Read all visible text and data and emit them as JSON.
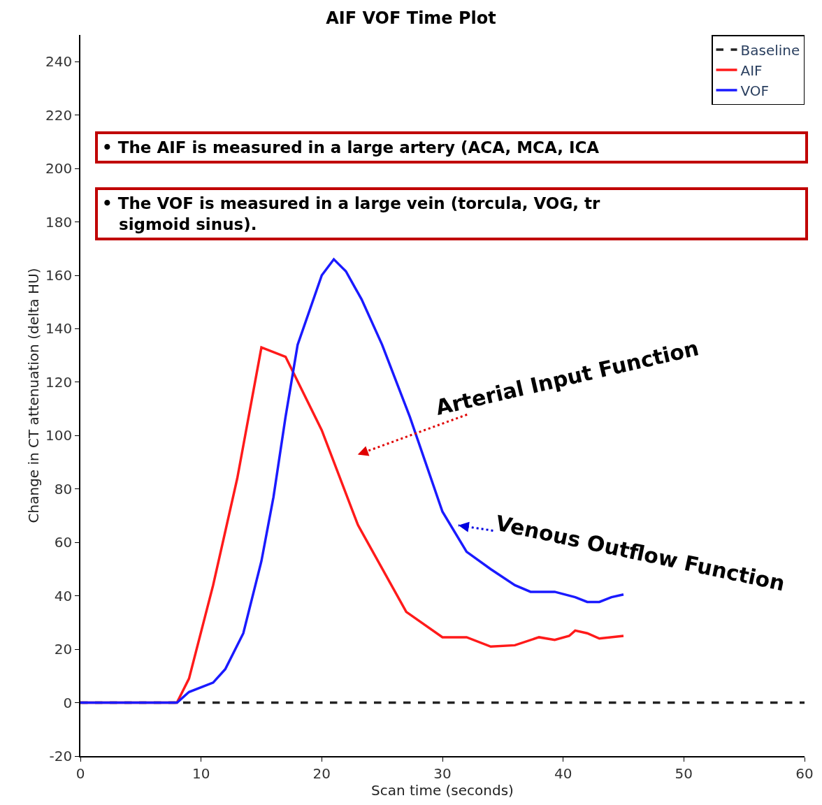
{
  "chart_data": {
    "type": "line",
    "title": "AIF VOF Time Plot",
    "xlabel": "Scan time (seconds)",
    "ylabel": "Change in CT attenuation (delta HU)",
    "xlim": [
      0,
      60
    ],
    "ylim": [
      -20,
      250
    ],
    "xticks": [
      0,
      10,
      20,
      30,
      40,
      50,
      60
    ],
    "yticks": [
      -20,
      0,
      20,
      40,
      60,
      80,
      100,
      120,
      140,
      160,
      180,
      200,
      220,
      240
    ],
    "grid": false,
    "legend": "top right",
    "marker": "none",
    "series": [
      {
        "name": "Baseline",
        "color": "#222222",
        "line_style": "dashed",
        "x": [
          0,
          60
        ],
        "values": [
          0,
          0
        ]
      },
      {
        "name": "AIF",
        "color": "#ff1a1a",
        "line_style": "solid",
        "x": [
          0,
          8,
          9,
          11,
          13,
          15,
          17,
          20,
          23,
          27,
          30,
          32,
          34,
          36,
          38,
          39.3,
          40.5,
          41,
          42,
          43,
          45
        ],
        "values": [
          0,
          0,
          9,
          44,
          84,
          133,
          129.5,
          102,
          66.5,
          34,
          24.5,
          24.5,
          21,
          21.5,
          24.5,
          23.5,
          25,
          27,
          26,
          24,
          25
        ]
      },
      {
        "name": "VOF",
        "color": "#1a1aff",
        "line_style": "solid",
        "x": [
          0,
          8,
          9,
          11,
          12,
          13.5,
          15,
          16,
          17,
          18,
          20,
          21,
          22,
          23.3,
          25,
          27.3,
          30,
          32,
          34,
          36,
          37.3,
          39.3,
          41,
          42,
          43,
          44,
          45
        ],
        "values": [
          0,
          0,
          4,
          7.5,
          12.5,
          26,
          53,
          77,
          107,
          134,
          160,
          166,
          161.5,
          151,
          134,
          107,
          71.5,
          56.5,
          50,
          44,
          41.5,
          41.5,
          39.5,
          37.7,
          37.7,
          39.5,
          40.5
        ]
      }
    ],
    "annotations": [
      "Arterial Input Function",
      "Venous Outflow Function",
      "• The AIF is measured in a large artery (ACA, MCA, ICA",
      "• The VOF is measured in a large vein (torcula, VOG, tr\nsigmoid sinus)."
    ]
  }
}
